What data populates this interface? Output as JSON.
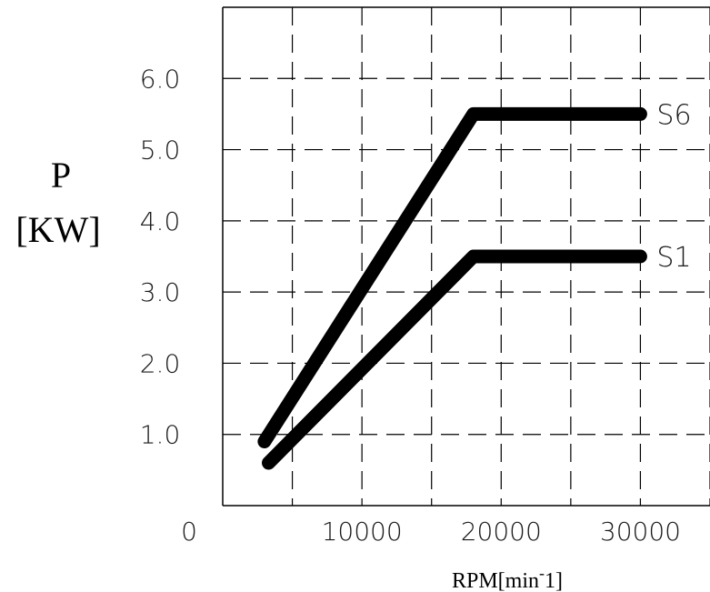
{
  "chart_data": {
    "type": "line",
    "ylabel_line1": "P",
    "ylabel_line2": "[KW]",
    "xlabel": "RPM[min",
    "xlabel_sup": "-",
    "xlabel_end": "1]",
    "x_origin_label": "0",
    "xlim": [
      0,
      35000
    ],
    "ylim": [
      0,
      7.0
    ],
    "x_ticks": [
      {
        "value": 10000,
        "label": "10000"
      },
      {
        "value": 20000,
        "label": "20000"
      },
      {
        "value": 30000,
        "label": "30000"
      }
    ],
    "y_ticks": [
      {
        "value": 1.0,
        "label": "1.0"
      },
      {
        "value": 2.0,
        "label": "2.0"
      },
      {
        "value": 3.0,
        "label": "3.0"
      },
      {
        "value": 4.0,
        "label": "4.0"
      },
      {
        "value": 5.0,
        "label": "5.0"
      },
      {
        "value": 6.0,
        "label": "6.0"
      }
    ],
    "grid_x": [
      5000,
      10000,
      15000,
      20000,
      25000,
      30000,
      35000
    ],
    "grid_y": [
      1.0,
      2.0,
      3.0,
      4.0,
      5.0,
      6.0
    ],
    "grid": true,
    "series": [
      {
        "name": "S6",
        "points": [
          [
            3000,
            0.9
          ],
          [
            18000,
            5.5
          ],
          [
            30000,
            5.5
          ]
        ]
      },
      {
        "name": "S1",
        "points": [
          [
            3300,
            0.6
          ],
          [
            18000,
            3.5
          ],
          [
            30000,
            3.5
          ]
        ]
      }
    ],
    "colors": {
      "line": "#000000",
      "grid": "#000000"
    }
  }
}
